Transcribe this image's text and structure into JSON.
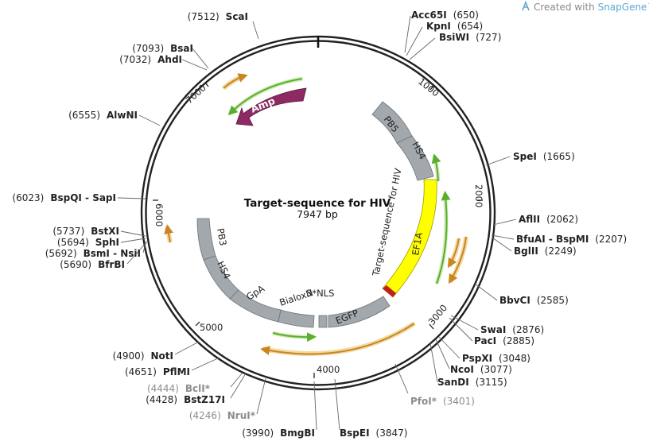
{
  "credit": {
    "prefix": "Created with ",
    "brand": "SnapGene",
    "tm": "™"
  },
  "plasmid": {
    "name": "Target-sequence for HIV",
    "length_label": "7947 bp",
    "length": 7947
  },
  "ruler_ticks": [
    {
      "bp": 1000,
      "label": "1000"
    },
    {
      "bp": 2000,
      "label": "2000"
    },
    {
      "bp": 3000,
      "label": "3000"
    },
    {
      "bp": 4000,
      "label": "4000"
    },
    {
      "bp": 5000,
      "label": "5000"
    },
    {
      "bp": 6000,
      "label": "6000"
    },
    {
      "bp": 7000,
      "label": "7000"
    }
  ],
  "sites": [
    {
      "name": "ScaI",
      "pos": "(7512)",
      "gray": false
    },
    {
      "name": "BsaI",
      "pos": "(7093)",
      "gray": false
    },
    {
      "name": "AhdI",
      "pos": "(7032)",
      "gray": false
    },
    {
      "name": "AlwNI",
      "pos": "(6555)",
      "gray": false
    },
    {
      "name": "BspQI - SapI",
      "pos": "(6023)",
      "gray": false
    },
    {
      "name": "BstXI",
      "pos": "(5737)",
      "gray": false
    },
    {
      "name": "SphI",
      "pos": "(5694)",
      "gray": false
    },
    {
      "name": "BsmI - NsiI",
      "pos": "(5692)",
      "gray": false
    },
    {
      "name": "BfrBI",
      "pos": "(5690)",
      "gray": false
    },
    {
      "name": "NotI",
      "pos": "(4900)",
      "gray": false
    },
    {
      "name": "PflMI",
      "pos": "(4651)",
      "gray": false
    },
    {
      "name": "BclI*",
      "pos": "(4444)",
      "gray": true
    },
    {
      "name": "BstZ17I",
      "pos": "(4428)",
      "gray": false
    },
    {
      "name": "NruI*",
      "pos": "(4246)",
      "gray": true
    },
    {
      "name": "BmgBI",
      "pos": "(3990)",
      "gray": false
    },
    {
      "name": "Acc65I",
      "pos": "(650)",
      "gray": false
    },
    {
      "name": "KpnI",
      "pos": "(654)",
      "gray": false
    },
    {
      "name": "BsiWI",
      "pos": "(727)",
      "gray": false
    },
    {
      "name": "SpeI",
      "pos": "(1665)",
      "gray": false
    },
    {
      "name": "AflII",
      "pos": "(2062)",
      "gray": false
    },
    {
      "name": "BfuAI - BspMI",
      "pos": "(2207)",
      "gray": false
    },
    {
      "name": "BglII",
      "pos": "(2249)",
      "gray": false
    },
    {
      "name": "BbvCI",
      "pos": "(2585)",
      "gray": false
    },
    {
      "name": "SwaI",
      "pos": "(2876)",
      "gray": false
    },
    {
      "name": "PacI",
      "pos": "(2885)",
      "gray": false
    },
    {
      "name": "PspXI",
      "pos": "(3048)",
      "gray": false
    },
    {
      "name": "NcoI",
      "pos": "(3077)",
      "gray": false
    },
    {
      "name": "SanDI",
      "pos": "(3115)",
      "gray": false
    },
    {
      "name": "PfoI*",
      "pos": "(3401)",
      "gray": true
    },
    {
      "name": "BspEI",
      "pos": "(3847)",
      "gray": false
    }
  ],
  "features": {
    "amp": "Amp",
    "pb5": "PB5",
    "hs4_top": "HS4",
    "target_seq": "Target-sequence for HIV",
    "ef1a": "EF1A",
    "pb3": "PB3",
    "hs4_bottom": "HS4",
    "gpa": "GpA",
    "bialoxn": "BialoxN",
    "nls": "3*NLS",
    "egfp": "EGFP",
    "target_seq_label": "Target-sequence for HIV"
  },
  "colors": {
    "backbone": "#222222",
    "amp": "#8e2a63",
    "gray_feature": "#a3a8ad",
    "ef1a": "#ffff00",
    "orf_green": "#5ab02e",
    "orf_orange": "#c9851f",
    "orf_glow": "#f3d9a4",
    "nls_red": "#c0201e",
    "brand": "#5ea6d3"
  }
}
